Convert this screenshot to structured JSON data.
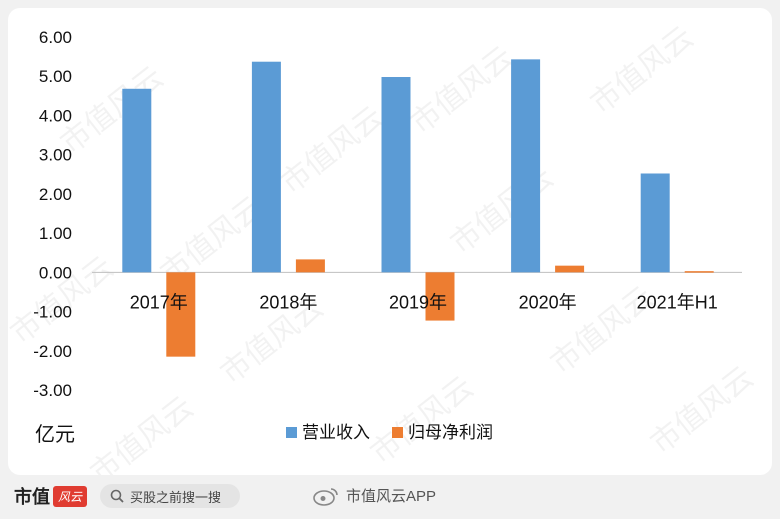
{
  "chart_data": {
    "type": "bar",
    "categories": [
      "2017年",
      "2018年",
      "2019年",
      "2020年",
      "2021年H1"
    ],
    "series": [
      {
        "name": "营业收入",
        "color": "#5b9bd5",
        "values": [
          4.68,
          5.37,
          4.98,
          5.43,
          2.52
        ]
      },
      {
        "name": "归母净利润",
        "color": "#ed7d31",
        "values": [
          -2.15,
          0.33,
          -1.23,
          0.17,
          0.03
        ]
      }
    ],
    "ylim": [
      -3,
      6
    ],
    "yticks": [
      "-3.00",
      "-2.00",
      "-1.00",
      "0.00",
      "1.00",
      "2.00",
      "3.00",
      "4.00",
      "5.00",
      "6.00"
    ],
    "unit": "亿元",
    "legend_position": "bottom-center",
    "grid": false
  },
  "watermark": "市值风云",
  "footer": {
    "brand": "市值",
    "brand_badge": "风云",
    "search_placeholder": "买股之前搜一搜",
    "app_label": "市值风云APP"
  }
}
